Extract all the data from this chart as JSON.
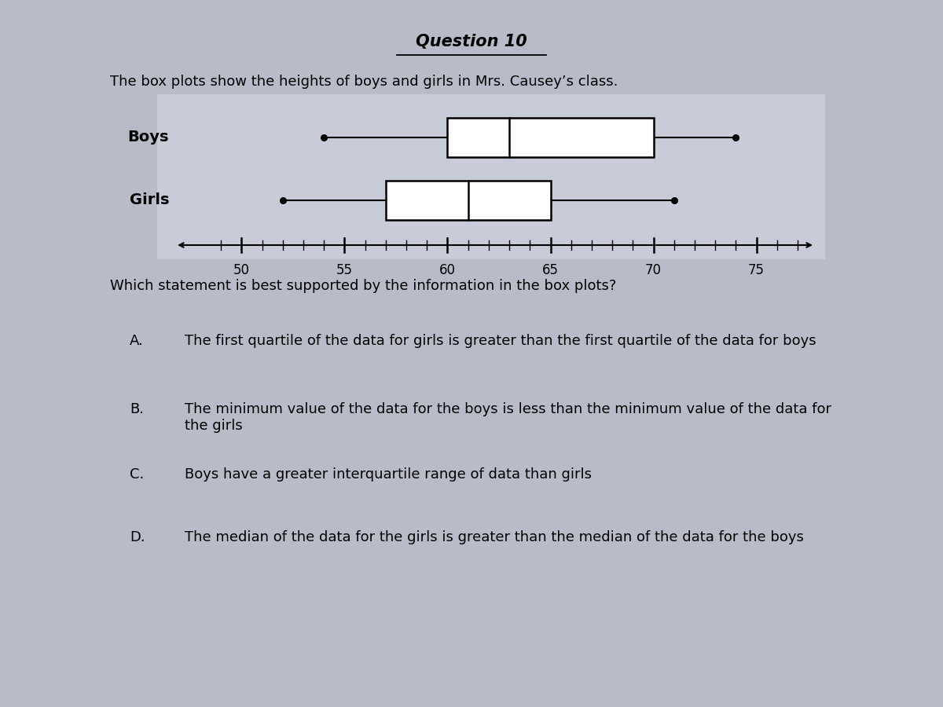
{
  "title": "Question 10",
  "subtitle": "The box plots show the heights of boys and girls in Mrs. Causey’s class.",
  "boys": {
    "min": 54,
    "q1": 60,
    "median": 63,
    "q3": 70,
    "max": 74,
    "label": "Boys"
  },
  "girls": {
    "min": 52,
    "q1": 57,
    "median": 61,
    "q3": 65,
    "max": 71,
    "label": "Girls"
  },
  "xmin": 48,
  "xmax": 77,
  "xticks": [
    50,
    55,
    60,
    65,
    70,
    75
  ],
  "question": "Which statement is best supported by the information in the box plots?",
  "choices": [
    [
      "A.",
      "The first quartile of the data for girls is greater than the first quartile of the data for boys"
    ],
    [
      "B.",
      "The minimum value of the data for the boys is less than the minimum value of the data for\nthe girls"
    ],
    [
      "C.",
      "Boys have a greater interquartile range of data than girls"
    ],
    [
      "D.",
      "The median of the data for the girls is greater than the median of the data for the boys"
    ]
  ],
  "bg_color": "#b8bcc8",
  "box_plot_bg": "#c8ccd8",
  "box_color": "#000000",
  "text_color": "#000000",
  "title_fontsize": 15,
  "subtitle_fontsize": 13,
  "label_fontsize": 14,
  "tick_fontsize": 12,
  "question_fontsize": 13,
  "choice_fontsize": 13
}
